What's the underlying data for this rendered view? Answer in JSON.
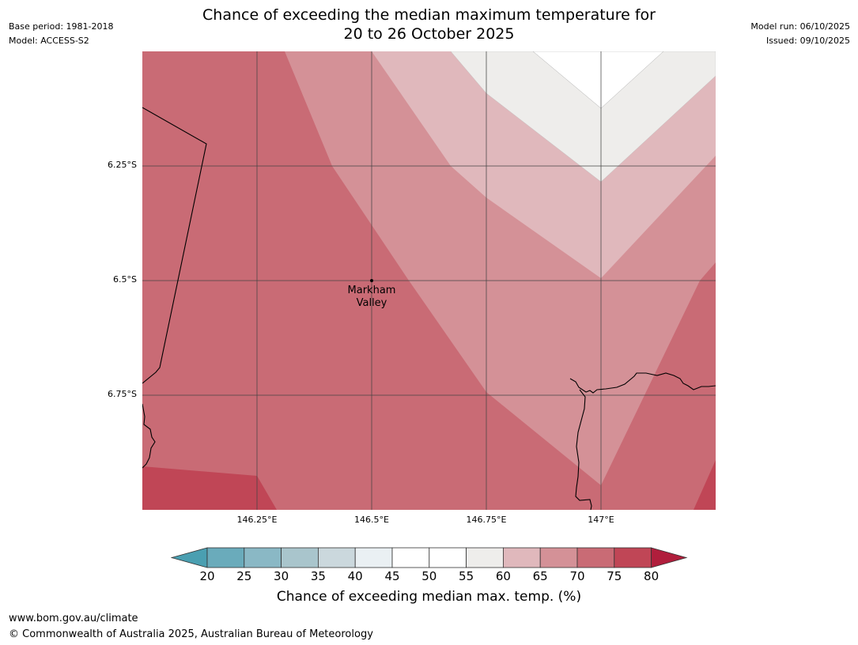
{
  "header": {
    "base_period": "Base period: 1981-2018",
    "model": "Model: ACCESS-S2",
    "model_run": "Model run: 06/10/2025",
    "issued": "Issued: 09/10/2025",
    "title_line1": "Chance of exceeding the median maximum temperature for",
    "title_line2": "20 to 26 October 2025"
  },
  "map": {
    "lat_labels": [
      "6.25°S",
      "6.5°S",
      "6.75°S"
    ],
    "lon_labels": [
      "146.25°E",
      "146.5°E",
      "146.75°E",
      "147°E"
    ],
    "place": {
      "name_line1": "Markham",
      "name_line2": "Valley"
    },
    "region_values": {
      "top_band": "55-60",
      "upper_band": "60-65",
      "middle_band": "65-70",
      "main_region": "70-75",
      "corner_regions": "75-80"
    }
  },
  "legend": {
    "title": "Chance of exceeding median max. temp. (%)",
    "ticks": [
      "20",
      "25",
      "30",
      "35",
      "40",
      "45",
      "50",
      "55",
      "60",
      "65",
      "70",
      "75",
      "80"
    ],
    "colors": {
      "below_20": "#4a9fb1",
      "20-25": "#6aabbb",
      "25-30": "#8ab8c5",
      "30-35": "#a9c5cc",
      "35-40": "#cbd8dd",
      "40-45": "#eaf0f3",
      "45-50": "#ffffff",
      "50-55": "#ffffff",
      "55-60": "#eeedeb",
      "60-65": "#e0b8bc",
      "65-70": "#d49197",
      "70-75": "#c96b75",
      "75-80": "#c04656",
      "above_80": "#b01e3c"
    }
  },
  "footer": {
    "url": "www.bom.gov.au/climate",
    "copyright": "© Commonwealth of Australia 2025, Australian Bureau of Meteorology"
  }
}
